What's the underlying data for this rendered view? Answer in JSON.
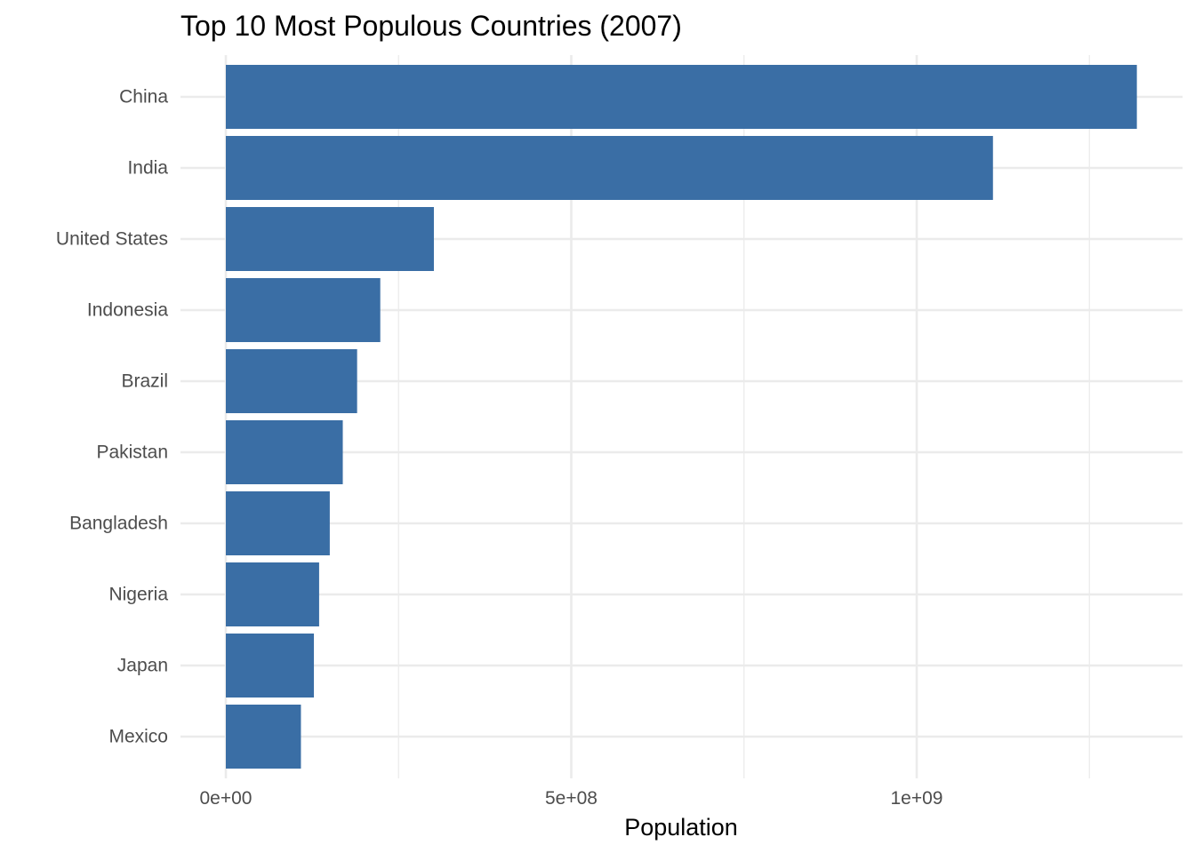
{
  "chart_data": {
    "type": "bar",
    "orientation": "horizontal",
    "title": "Top 10 Most Populous Countries (2007)",
    "xlabel": "Population",
    "ylabel": "",
    "categories": [
      "China",
      "India",
      "United States",
      "Indonesia",
      "Brazil",
      "Pakistan",
      "Bangladesh",
      "Nigeria",
      "Japan",
      "Mexico"
    ],
    "values": [
      1318683096,
      1110396331,
      301139947,
      223547000,
      190010647,
      169270617,
      150448339,
      135031164,
      127467972,
      108700891
    ],
    "xlim": [
      0,
      1320000000
    ],
    "x_ticks": [
      {
        "value": 0,
        "label": "0e+00"
      },
      {
        "value": 500000000,
        "label": "5e+08"
      },
      {
        "value": 1000000000,
        "label": "1e+09"
      }
    ],
    "x_minor_ticks": [
      250000000,
      750000000,
      1250000000
    ],
    "bar_color": "#3a6ea5",
    "grid": true,
    "legend": "none"
  }
}
